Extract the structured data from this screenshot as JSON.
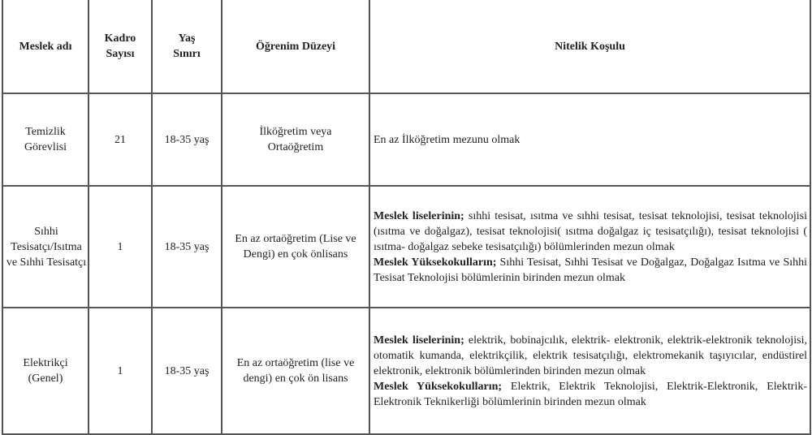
{
  "headers": {
    "meslek": "Meslek adı",
    "kadro": "Kadro Sayısı",
    "yas": "Yaş Sınırı",
    "ogrenim": "Öğrenim Düzeyi",
    "nitelik": "Nitelik Koşulu"
  },
  "rows": [
    {
      "meslek": "Temizlik Görevlisi",
      "kadro": "21",
      "yas": "18-35 yaş",
      "ogrenim": "İlköğretim veya Ortaöğretim",
      "nitelik": "En az İlköğretim mezunu olmak"
    },
    {
      "meslek": "Sıhhi Tesisatçı/Isıtma ve Sıhhi Tesisatçı",
      "kadro": "1",
      "yas": "18-35 yaş",
      "ogrenim": "En az ortaöğretim (Lise ve Dengi) en çok önlisans",
      "lise_label": "Meslek liselerinin;",
      "lise_text": " sıhhi tesisat, ısıtma ve sıhhi tesisat, tesisat teknolojisi, tesisat teknolojisi (ısıtma ve doğalgaz), tesisat teknolojisi( ısıtma doğalgaz iç tesisatçılığı), tesisat teknolojisi ( ısıtma- doğalgaz sebeke tesisatçılığı) bölümlerinden mezun olmak",
      "yuksek_label": "Meslek Yüksekokulların;",
      "yuksek_text": "  Sıhhi Tesisat, Sıhhi Tesisat ve Doğalgaz, Doğalgaz Isıtma ve Sıhhi Tesisat Teknolojisi bölümlerinin birinden mezun olmak"
    },
    {
      "meslek": "Elektrikçi (Genel)",
      "kadro": "1",
      "yas": "18-35 yaş",
      "ogrenim": "En az ortaöğretim (lise ve dengi) en çok ön lisans",
      "lise_label": "Meslek liselerinin;",
      "lise_text": " elektrik, bobinajcılık, elektrik- elektronik, elektrik-elektronik teknolojisi, otomatik kumanda, elektrikçilik, elektrik tesisatçılığı, elektromekanik taşıyıcılar, endüstirel elektronik, elektronik bölümlerinden birinden mezun olmak",
      "yuksek_label": "Meslek Yüksekokulların;",
      "yuksek_text": " Elektrik, Elektrik Teknolojisi, Elektrik-Elektronik, Elektrik-Elektronik Teknikerliği  bölümlerinin birinden mezun olmak"
    }
  ]
}
